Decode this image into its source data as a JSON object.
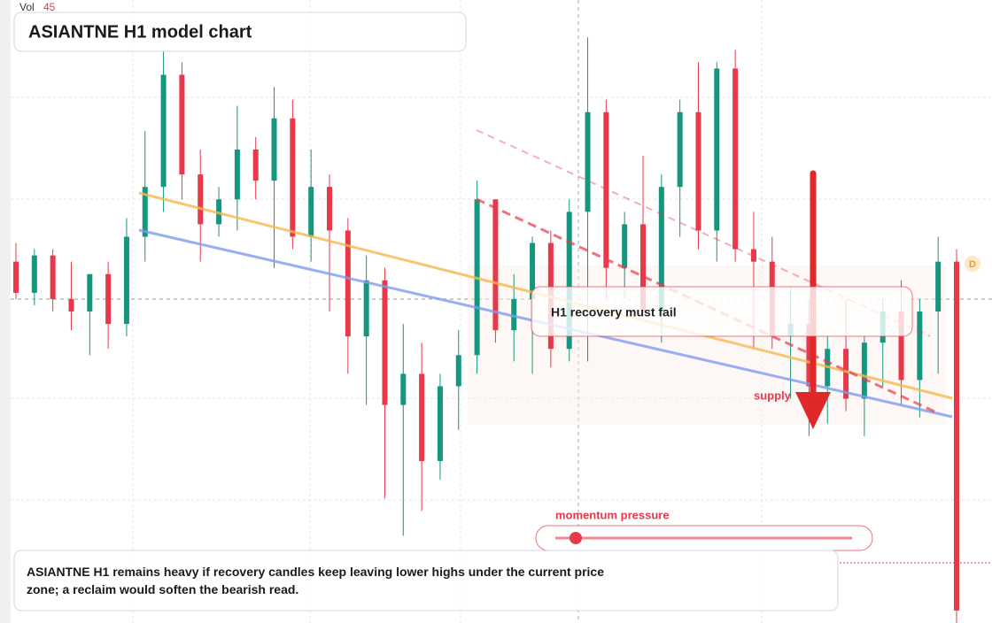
{
  "chart_data": {
    "type": "candlestick",
    "title": "ASIANTNE H1 model chart",
    "volume_label": "Vol",
    "volume": 45,
    "annotation": "H1 recovery must fail",
    "zone_label": "supply",
    "slider_label": "momentum pressure",
    "badge": "D",
    "note": "ASIANTNE H1 remains heavy if recovery candles keep leaving lower highs under the current price zone; a reclaim would soften the bearish read.",
    "up_color": "#16967e",
    "down_color": "#e8394a",
    "ylim": [
      0,
      100
    ],
    "open": [
      58,
      53,
      59,
      52,
      50,
      56,
      48,
      62,
      70,
      88,
      72,
      64,
      68,
      76,
      71,
      81,
      62,
      70,
      63,
      46,
      55,
      35,
      40,
      26,
      38,
      43,
      68,
      47,
      52,
      61,
      44,
      66,
      82,
      57,
      64,
      50,
      70,
      82,
      63,
      89,
      60,
      58,
      46,
      48,
      38,
      44,
      36,
      45,
      50,
      39,
      50,
      58
    ],
    "high": [
      61,
      60,
      60,
      58,
      56,
      58,
      65,
      79,
      92,
      90,
      76,
      70,
      83,
      78,
      86,
      84,
      76,
      72,
      65,
      59,
      57,
      48,
      45,
      40,
      47,
      71,
      68,
      56,
      62,
      63,
      68,
      94,
      84,
      66,
      75,
      72,
      84,
      90,
      90,
      92,
      66,
      62,
      54,
      52,
      46,
      52,
      46,
      52,
      55,
      52,
      62,
      60
    ],
    "low": [
      52,
      51,
      50,
      47,
      43,
      44,
      46,
      58,
      66,
      68,
      58,
      62,
      63,
      68,
      57,
      60,
      58,
      50,
      40,
      35,
      20,
      14,
      18,
      23,
      31,
      40,
      45,
      42,
      40,
      41,
      42,
      42,
      52,
      52,
      50,
      45,
      62,
      60,
      58,
      58,
      44,
      44,
      36,
      30,
      32,
      34,
      30,
      38,
      35,
      33,
      40,
      0
    ],
    "close": [
      53,
      59,
      52,
      50,
      56,
      48,
      62,
      70,
      88,
      72,
      64,
      68,
      76,
      71,
      81,
      62,
      70,
      63,
      46,
      55,
      35,
      40,
      26,
      38,
      43,
      68,
      47,
      52,
      61,
      44,
      66,
      82,
      57,
      64,
      50,
      70,
      82,
      63,
      89,
      60,
      58,
      46,
      48,
      38,
      44,
      36,
      45,
      50,
      39,
      50,
      58,
      2
    ]
  }
}
